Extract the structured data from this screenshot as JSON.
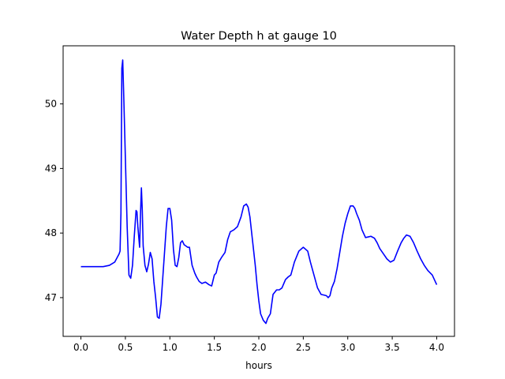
{
  "chart_data": {
    "type": "line",
    "title": "Water Depth h at gauge 10",
    "xlabel": "hours",
    "ylabel": "",
    "xlim": [
      -0.2,
      4.2
    ],
    "ylim": [
      46.4,
      50.9
    ],
    "xticks": [
      0.0,
      0.5,
      1.0,
      1.5,
      2.0,
      2.5,
      3.0,
      3.5,
      4.0
    ],
    "xtick_labels": [
      "0.0",
      "0.5",
      "1.0",
      "1.5",
      "2.0",
      "2.5",
      "3.0",
      "3.5",
      "4.0"
    ],
    "yticks": [
      47,
      48,
      49,
      50
    ],
    "ytick_labels": [
      "47",
      "48",
      "49",
      "50"
    ],
    "grid": false,
    "series": [
      {
        "color": "#0000ff",
        "x": [
          0.0,
          0.25,
          0.32,
          0.38,
          0.43,
          0.44,
          0.45,
          0.46,
          0.47,
          0.48,
          0.5,
          0.52,
          0.54,
          0.56,
          0.58,
          0.6,
          0.62,
          0.63,
          0.64,
          0.66,
          0.67,
          0.68,
          0.69,
          0.7,
          0.72,
          0.74,
          0.76,
          0.78,
          0.8,
          0.82,
          0.84,
          0.86,
          0.88,
          0.9,
          0.92,
          0.94,
          0.96,
          0.98,
          1.0,
          1.02,
          1.04,
          1.06,
          1.08,
          1.1,
          1.12,
          1.14,
          1.16,
          1.18,
          1.2,
          1.22,
          1.25,
          1.28,
          1.3,
          1.33,
          1.36,
          1.4,
          1.44,
          1.47,
          1.5,
          1.52,
          1.55,
          1.58,
          1.62,
          1.65,
          1.68,
          1.72,
          1.76,
          1.8,
          1.83,
          1.86,
          1.88,
          1.9,
          1.92,
          1.94,
          1.96,
          1.98,
          2.0,
          2.02,
          2.05,
          2.08,
          2.1,
          2.13,
          2.16,
          2.2,
          2.23,
          2.26,
          2.3,
          2.33,
          2.36,
          2.4,
          2.45,
          2.5,
          2.55,
          2.58,
          2.62,
          2.66,
          2.7,
          2.73,
          2.76,
          2.78,
          2.8,
          2.82,
          2.85,
          2.88,
          2.91,
          2.94,
          2.97,
          3.0,
          3.03,
          3.06,
          3.08,
          3.1,
          3.13,
          3.16,
          3.2,
          3.23,
          3.26,
          3.3,
          3.33,
          3.36,
          3.4,
          3.44,
          3.48,
          3.52,
          3.56,
          3.6,
          3.63,
          3.66,
          3.7,
          3.74,
          3.78,
          3.82,
          3.86,
          3.9,
          3.95,
          4.0
        ],
        "y": [
          47.48,
          47.48,
          47.5,
          47.55,
          47.68,
          47.72,
          48.3,
          50.55,
          50.68,
          50.2,
          49.15,
          48.1,
          47.35,
          47.3,
          47.5,
          47.95,
          48.35,
          48.33,
          48.1,
          47.78,
          48.3,
          48.7,
          48.35,
          47.8,
          47.5,
          47.4,
          47.52,
          47.7,
          47.6,
          47.25,
          47.0,
          46.7,
          46.68,
          46.9,
          47.3,
          47.7,
          48.1,
          48.38,
          48.38,
          48.2,
          47.75,
          47.5,
          47.48,
          47.62,
          47.85,
          47.88,
          47.82,
          47.8,
          47.78,
          47.78,
          47.5,
          47.38,
          47.32,
          47.25,
          47.22,
          47.24,
          47.2,
          47.18,
          47.35,
          47.38,
          47.55,
          47.62,
          47.7,
          47.9,
          48.02,
          48.05,
          48.1,
          48.25,
          48.42,
          48.45,
          48.4,
          48.25,
          48.0,
          47.75,
          47.5,
          47.2,
          46.95,
          46.75,
          46.65,
          46.6,
          46.68,
          46.75,
          47.05,
          47.12,
          47.12,
          47.15,
          47.28,
          47.32,
          47.35,
          47.55,
          47.72,
          47.78,
          47.72,
          47.55,
          47.35,
          47.15,
          47.05,
          47.04,
          47.03,
          47.0,
          47.03,
          47.15,
          47.25,
          47.45,
          47.7,
          47.95,
          48.15,
          48.3,
          48.42,
          48.42,
          48.38,
          48.3,
          48.2,
          48.05,
          47.93,
          47.94,
          47.95,
          47.92,
          47.85,
          47.76,
          47.68,
          47.6,
          47.55,
          47.58,
          47.72,
          47.85,
          47.92,
          47.97,
          47.95,
          47.85,
          47.72,
          47.6,
          47.5,
          47.42,
          47.35,
          47.2
        ]
      }
    ]
  }
}
